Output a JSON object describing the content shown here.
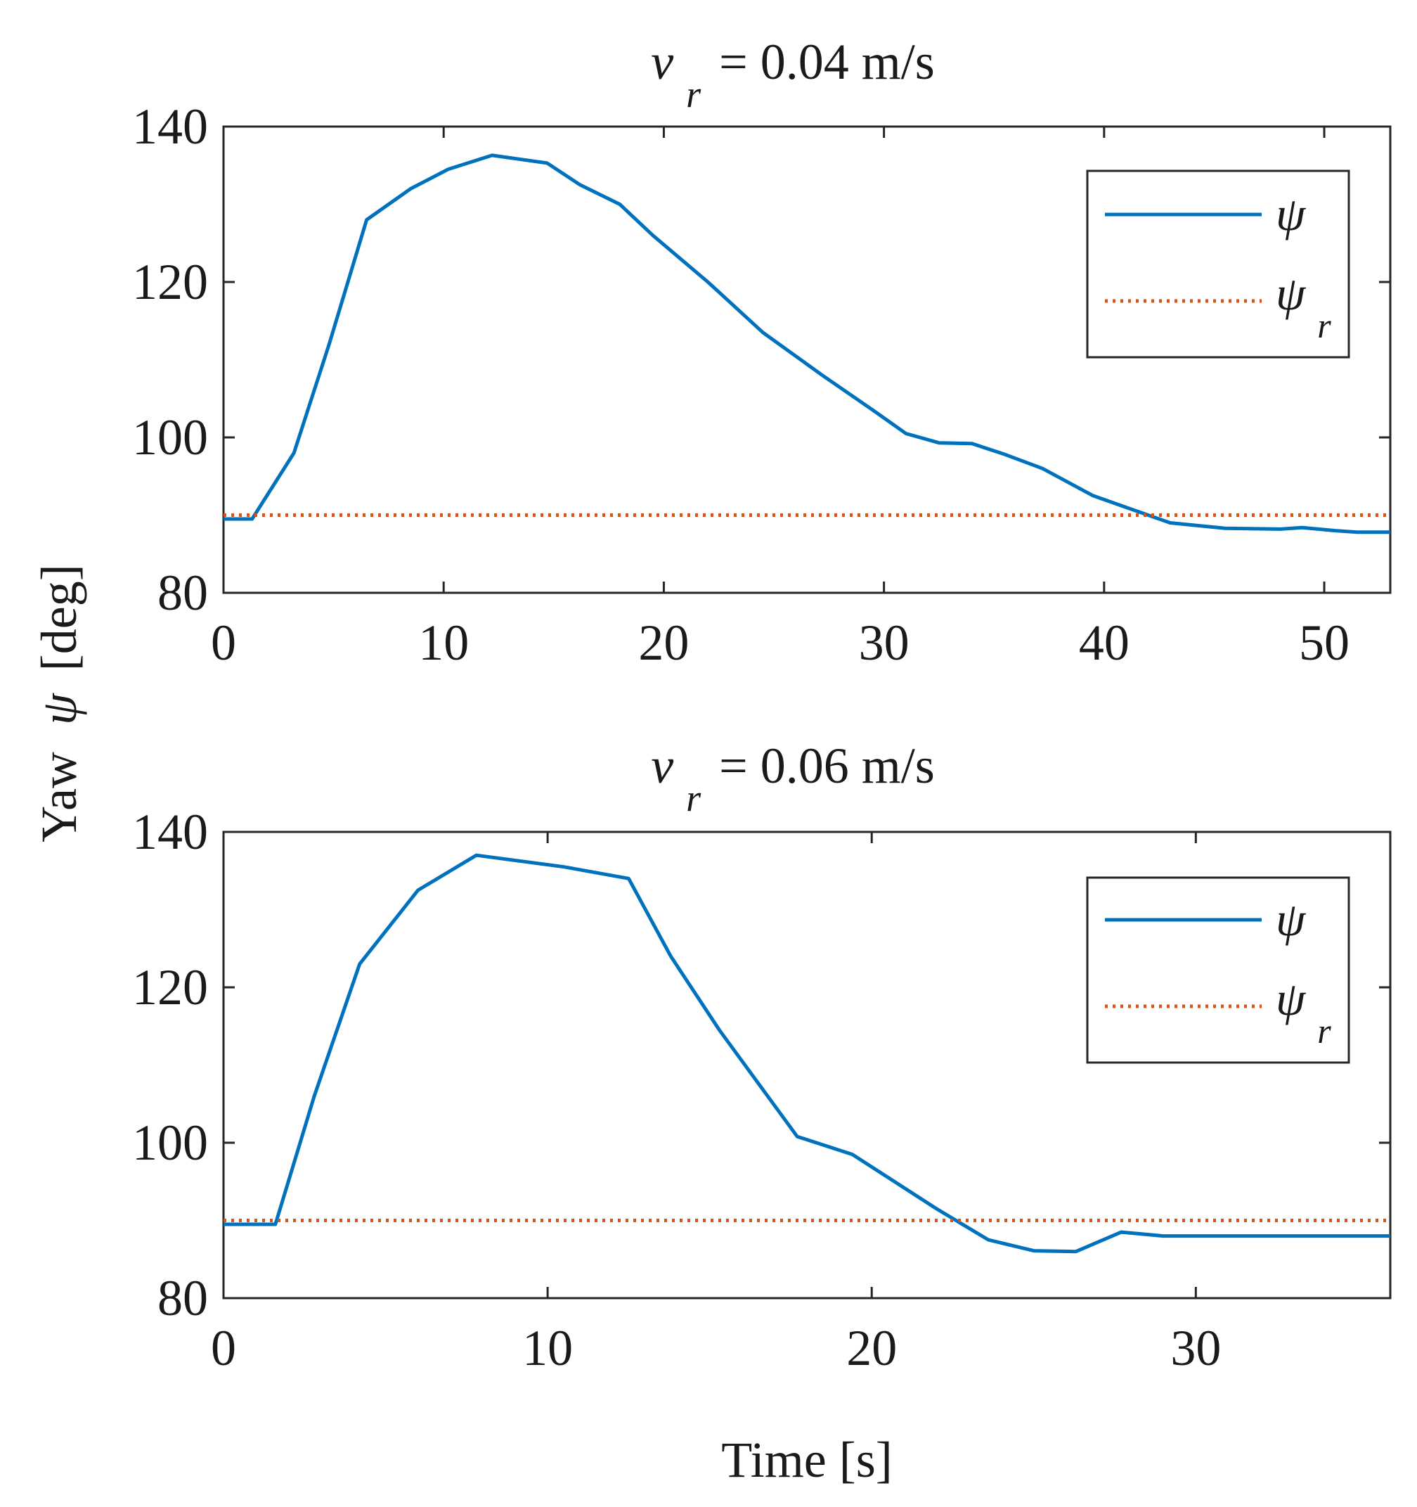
{
  "ylabel": "Yaw",
  "ylabel_symbol": "ψ",
  "ylabel_unit": "[deg]",
  "xlabel": "Time [s]",
  "colors": {
    "psi": "#0072BD",
    "psi_r": "#D95319"
  },
  "chart_data": [
    {
      "type": "line",
      "title_symbol": "v",
      "title_subscript": "r",
      "title_rest": "= 0.04 m/s",
      "xlim": [
        0,
        53
      ],
      "ylim": [
        80,
        140
      ],
      "xticks": [
        0,
        10,
        20,
        30,
        40,
        50
      ],
      "yticks": [
        80,
        100,
        120,
        140
      ],
      "legend": [
        {
          "symbol": "ψ",
          "subscript": ""
        },
        {
          "symbol": "ψ",
          "subscript": "r"
        }
      ],
      "series": [
        {
          "name": "psi",
          "x": [
            0,
            1.3,
            3.2,
            4.8,
            6.5,
            8.5,
            10.2,
            12.2,
            14.7,
            16.2,
            18,
            19.5,
            22,
            24.5,
            27.2,
            29.5,
            31,
            32.5,
            34,
            35.5,
            37.2,
            39.5,
            41,
            43,
            45.5,
            48,
            49,
            50.5,
            51.5,
            53
          ],
          "y": [
            89.5,
            89.5,
            98,
            112,
            128,
            132,
            134.5,
            136.3,
            135.3,
            132.5,
            130,
            126,
            120,
            113.5,
            108,
            103.5,
            100.5,
            99.3,
            99.2,
            97.8,
            96,
            92.5,
            91,
            89,
            88.3,
            88.2,
            88.4,
            88,
            87.8,
            87.8
          ]
        },
        {
          "name": "psi_r",
          "x": [
            0,
            53
          ],
          "y": [
            90,
            90
          ]
        }
      ]
    },
    {
      "type": "line",
      "title_symbol": "v",
      "title_subscript": "r",
      "title_rest": "= 0.06 m/s",
      "xlim": [
        0,
        36
      ],
      "ylim": [
        80,
        140
      ],
      "xticks": [
        0,
        10,
        20,
        30
      ],
      "yticks": [
        80,
        100,
        120,
        140
      ],
      "legend": [
        {
          "symbol": "ψ",
          "subscript": ""
        },
        {
          "symbol": "ψ",
          "subscript": "r"
        }
      ],
      "series": [
        {
          "name": "psi",
          "x": [
            0,
            1.6,
            2.8,
            4.2,
            6,
            7.8,
            10.5,
            12.5,
            13.8,
            15.3,
            17.7,
            19.4,
            22,
            23.6,
            25,
            26.3,
            27.7,
            29,
            33,
            36
          ],
          "y": [
            89.5,
            89.5,
            106,
            123,
            132.5,
            137,
            135.5,
            134,
            124,
            114.5,
            100.8,
            98.5,
            91.5,
            87.5,
            86.1,
            86,
            88.5,
            88,
            88,
            88
          ]
        },
        {
          "name": "psi_r",
          "x": [
            0,
            36
          ],
          "y": [
            90,
            90
          ]
        }
      ]
    }
  ]
}
